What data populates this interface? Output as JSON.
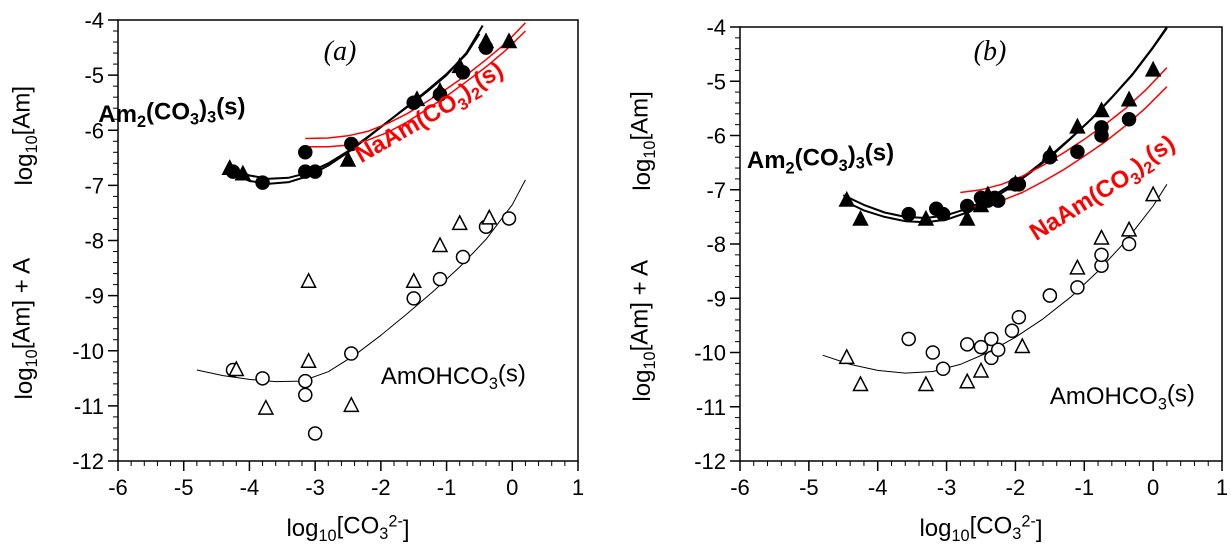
{
  "chart_data": [
    {
      "type": "scatter",
      "title": "(a)",
      "xlabel": "log10[CO3 2-]",
      "ylabel_top": "log10[Am]",
      "ylabel_bottom": "log10[Am] + A",
      "xlim": [
        -6,
        1
      ],
      "ylim": [
        -12,
        -4
      ],
      "xticks": [
        -6,
        -5,
        -4,
        -3,
        -2,
        -1,
        0,
        1
      ],
      "yticks": [
        -12,
        -11,
        -10,
        -9,
        -8,
        -7,
        -6,
        -5,
        -4
      ],
      "grid": false,
      "annotations": [
        {
          "text": "Am2(CO3)3(s)",
          "color": "#000000",
          "weight": "bold",
          "x": -6.3,
          "y": -5.85
        },
        {
          "text": "NaAm(CO3)2(s)",
          "color": "#ff0000",
          "weight": "bold",
          "x": -2.3,
          "y": -6.6,
          "rotate": -30
        },
        {
          "text": "AmOHCO3(s)",
          "color": "#000000",
          "weight": "normal",
          "x": -2.0,
          "y": -10.6
        }
      ],
      "series": [
        {
          "marker": "filled-circle",
          "color": "#000000",
          "x": [
            -4.25,
            -3.8,
            -3.15,
            -3.15,
            -3.0,
            -2.45,
            -1.5,
            -1.1,
            -0.75,
            -0.4
          ],
          "y": [
            -6.75,
            -6.95,
            -6.4,
            -6.75,
            -6.75,
            -6.25,
            -5.5,
            -5.35,
            -4.95,
            -4.5
          ]
        },
        {
          "marker": "filled-triangle",
          "color": "#000000",
          "x": [
            -4.3,
            -4.1,
            -2.5,
            -1.45,
            -1.1,
            -0.8,
            -0.4,
            -0.05
          ],
          "y": [
            -6.7,
            -6.8,
            -6.55,
            -5.45,
            -5.3,
            -4.85,
            -4.4,
            -4.4
          ]
        },
        {
          "marker": "open-circle",
          "color": "#000000",
          "x": [
            -4.25,
            -3.8,
            -3.15,
            -3.15,
            -3.0,
            -2.45,
            -1.5,
            -1.1,
            -0.75,
            -0.4,
            -0.05
          ],
          "y": [
            -10.35,
            -10.5,
            -10.55,
            -10.8,
            -11.5,
            -10.05,
            -9.05,
            -8.7,
            -8.3,
            -7.75,
            -7.6
          ]
        },
        {
          "marker": "open-triangle",
          "color": "#000000",
          "x": [
            -4.2,
            -3.75,
            -3.1,
            -3.1,
            -2.45,
            -1.5,
            -1.1,
            -0.8,
            -0.35
          ],
          "y": [
            -10.35,
            -11.05,
            -8.75,
            -10.2,
            -11.0,
            -8.75,
            -8.1,
            -7.7,
            -7.6
          ]
        }
      ],
      "curves": [
        {
          "color": "#000000",
          "width": 2,
          "x": [
            -4.3,
            -4.0,
            -3.7,
            -3.4,
            -3.1,
            -2.8,
            -2.5,
            -2.2,
            -1.9,
            -1.6,
            -1.3,
            -1.0,
            -0.7,
            -0.45
          ],
          "y": [
            -6.65,
            -6.82,
            -6.88,
            -6.86,
            -6.77,
            -6.6,
            -6.38,
            -6.12,
            -5.85,
            -5.58,
            -5.3,
            -5.0,
            -4.6,
            -4.1
          ]
        },
        {
          "color": "#000000",
          "width": 2,
          "x": [
            -4.3,
            -4.0,
            -3.7,
            -3.4,
            -3.1,
            -2.8,
            -2.5,
            -2.2,
            -1.9,
            -1.6,
            -1.3,
            -1.0,
            -0.7,
            -0.5
          ],
          "y": [
            -6.75,
            -6.92,
            -6.97,
            -6.94,
            -6.83,
            -6.64,
            -6.4,
            -6.13,
            -5.85,
            -5.57,
            -5.28,
            -4.98,
            -4.62,
            -4.25
          ]
        },
        {
          "color": "#ff0000",
          "width": 1.5,
          "x": [
            -3.15,
            -2.8,
            -2.5,
            -2.2,
            -1.9,
            -1.6,
            -1.3,
            -1.0,
            -0.7,
            -0.4,
            -0.1,
            0.2
          ],
          "y": [
            -6.15,
            -6.14,
            -6.1,
            -6.02,
            -5.88,
            -5.7,
            -5.48,
            -5.25,
            -5.0,
            -4.72,
            -4.42,
            -4.05
          ]
        },
        {
          "color": "#ff0000",
          "width": 1.5,
          "x": [
            -3.15,
            -2.8,
            -2.5,
            -2.2,
            -1.9,
            -1.6,
            -1.3,
            -1.0,
            -0.7,
            -0.4,
            -0.1,
            0.2
          ],
          "y": [
            -6.3,
            -6.3,
            -6.27,
            -6.18,
            -6.04,
            -5.85,
            -5.62,
            -5.38,
            -5.12,
            -4.85,
            -4.55,
            -4.2
          ]
        },
        {
          "color": "#000000",
          "width": 1,
          "x": [
            -4.8,
            -4.4,
            -4.0,
            -3.6,
            -3.2,
            -2.8,
            -2.4,
            -2.0,
            -1.6,
            -1.2,
            -0.8,
            -0.4,
            0.0,
            0.2
          ],
          "y": [
            -10.35,
            -10.45,
            -10.52,
            -10.56,
            -10.55,
            -10.38,
            -10.08,
            -9.72,
            -9.33,
            -8.92,
            -8.48,
            -7.98,
            -7.35,
            -6.9
          ]
        }
      ]
    },
    {
      "type": "scatter",
      "title": "(b)",
      "xlabel": "log10[CO3 2-]",
      "ylabel_top": "log10[Am]",
      "ylabel_bottom": "log10[Am] + A",
      "xlim": [
        -6,
        1
      ],
      "ylim": [
        -12,
        -4
      ],
      "xticks": [
        -6,
        -5,
        -4,
        -3,
        -2,
        -1,
        0,
        1
      ],
      "yticks": [
        -12,
        -11,
        -10,
        -9,
        -8,
        -7,
        -6,
        -5,
        -4
      ],
      "grid": false,
      "annotations": [
        {
          "text": "Am2(CO3)3(s)",
          "color": "#000000",
          "weight": "bold",
          "x": -5.9,
          "y": -6.6
        },
        {
          "text": "NaAm(CO3)2(s)",
          "color": "#ff0000",
          "weight": "bold",
          "x": -1.7,
          "y": -7.95,
          "rotate": -32
        },
        {
          "text": "AmOHCO3(s)",
          "color": "#000000",
          "weight": "normal",
          "x": -1.5,
          "y": -10.95
        }
      ],
      "series": [
        {
          "marker": "filled-circle",
          "color": "#000000",
          "x": [
            -3.55,
            -3.15,
            -3.05,
            -2.7,
            -2.5,
            -2.4,
            -2.3,
            -2.25,
            -2.0,
            -1.95,
            -1.5,
            -1.1,
            -0.75,
            -0.75,
            -0.35
          ],
          "y": [
            -7.45,
            -7.35,
            -7.45,
            -7.3,
            -7.15,
            -7.2,
            -7.15,
            -7.2,
            -6.9,
            -6.9,
            -6.4,
            -6.3,
            -6.0,
            -5.85,
            -5.7
          ]
        },
        {
          "marker": "filled-triangle",
          "color": "#000000",
          "x": [
            -4.45,
            -4.25,
            -3.3,
            -2.7,
            -2.5,
            -2.4,
            -2.0,
            -1.5,
            -1.1,
            -0.75,
            -0.35,
            0.0
          ],
          "y": [
            -7.2,
            -7.55,
            -7.55,
            -7.55,
            -7.3,
            -7.1,
            -6.9,
            -6.35,
            -5.85,
            -5.55,
            -5.35,
            -4.8
          ]
        },
        {
          "marker": "open-circle",
          "color": "#000000",
          "x": [
            -3.55,
            -3.2,
            -3.05,
            -2.7,
            -2.5,
            -2.35,
            -2.35,
            -2.25,
            -2.05,
            -1.95,
            -1.5,
            -1.5,
            -1.1,
            -0.75,
            -0.75,
            -0.35
          ],
          "y": [
            -9.75,
            -10.0,
            -10.3,
            -9.85,
            -9.9,
            -9.75,
            -10.1,
            -9.95,
            -9.6,
            -9.35,
            -8.95,
            -8.95,
            -8.8,
            -8.4,
            -8.2,
            -8.0
          ]
        },
        {
          "marker": "open-triangle",
          "color": "#000000",
          "x": [
            -4.45,
            -4.25,
            -3.3,
            -2.7,
            -2.5,
            -1.9,
            -1.1,
            -0.75,
            -0.35,
            0.0
          ],
          "y": [
            -10.1,
            -10.6,
            -10.6,
            -10.55,
            -10.35,
            -9.9,
            -8.45,
            -7.9,
            -7.75,
            -7.1
          ]
        }
      ],
      "curves": [
        {
          "color": "#000000",
          "width": 2,
          "x": [
            -4.5,
            -4.2,
            -3.9,
            -3.6,
            -3.3,
            -3.0,
            -2.7,
            -2.4,
            -2.1,
            -1.8,
            -1.5,
            -1.2,
            -0.9,
            -0.6,
            -0.3,
            0.0,
            0.2
          ],
          "y": [
            -7.2,
            -7.38,
            -7.5,
            -7.58,
            -7.6,
            -7.55,
            -7.42,
            -7.22,
            -6.98,
            -6.7,
            -6.4,
            -6.06,
            -5.7,
            -5.3,
            -4.88,
            -4.38,
            -4.02
          ]
        },
        {
          "color": "#000000",
          "width": 2,
          "x": [
            -4.5,
            -4.2,
            -3.9,
            -3.6,
            -3.3,
            -3.0,
            -2.7,
            -2.4,
            -2.1,
            -1.8,
            -1.5,
            -1.2,
            -0.9,
            -0.6,
            -0.3,
            0.0,
            0.2
          ],
          "y": [
            -7.1,
            -7.28,
            -7.42,
            -7.5,
            -7.52,
            -7.47,
            -7.35,
            -7.17,
            -6.94,
            -6.68,
            -6.38,
            -6.05,
            -5.7,
            -5.3,
            -4.87,
            -4.37,
            -4.0
          ]
        },
        {
          "color": "#ff0000",
          "width": 1.5,
          "x": [
            -2.8,
            -2.5,
            -2.2,
            -1.9,
            -1.6,
            -1.3,
            -1.0,
            -0.7,
            -0.4,
            -0.1,
            0.2
          ],
          "y": [
            -7.05,
            -7.0,
            -6.9,
            -6.75,
            -6.55,
            -6.32,
            -6.07,
            -5.8,
            -5.5,
            -5.15,
            -4.75
          ]
        },
        {
          "color": "#ff0000",
          "width": 1.5,
          "x": [
            -2.8,
            -2.5,
            -2.2,
            -1.9,
            -1.6,
            -1.3,
            -1.0,
            -0.7,
            -0.4,
            -0.1,
            0.2
          ],
          "y": [
            -7.35,
            -7.3,
            -7.2,
            -7.05,
            -6.85,
            -6.63,
            -6.38,
            -6.12,
            -5.82,
            -5.48,
            -5.1
          ]
        },
        {
          "color": "#000000",
          "width": 1,
          "x": [
            -4.8,
            -4.4,
            -4.0,
            -3.6,
            -3.2,
            -2.8,
            -2.4,
            -2.0,
            -1.6,
            -1.2,
            -0.8,
            -0.4,
            0.0,
            0.2
          ],
          "y": [
            -10.05,
            -10.22,
            -10.33,
            -10.38,
            -10.35,
            -10.22,
            -10.0,
            -9.72,
            -9.38,
            -8.98,
            -8.5,
            -7.95,
            -7.3,
            -6.9
          ]
        }
      ]
    }
  ]
}
